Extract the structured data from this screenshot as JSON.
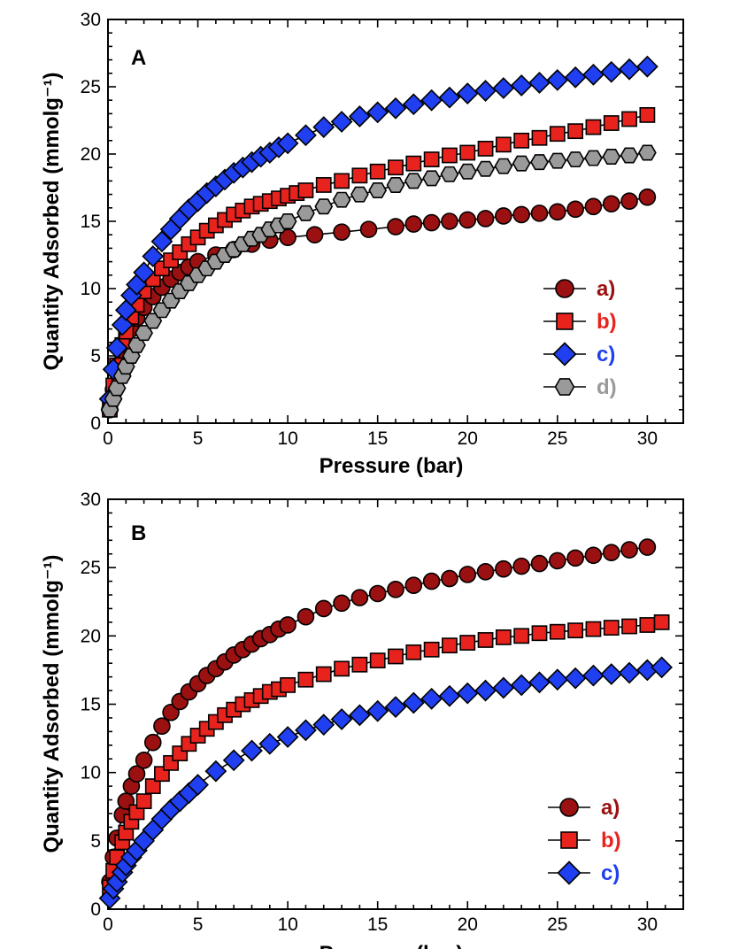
{
  "chart_data": [
    {
      "type": "scatter",
      "panel_label": "A",
      "xlabel": "Pressure (bar)",
      "ylabel": "Quantity Adsorbed (mmolg⁻¹)",
      "xlim": [
        0,
        32
      ],
      "ylim": [
        0,
        30
      ],
      "x_ticks": [
        0,
        5,
        10,
        15,
        20,
        25,
        30
      ],
      "y_ticks": [
        0,
        5,
        10,
        15,
        20,
        25,
        30
      ],
      "grid": false,
      "legend_position": "bottom-right",
      "series": [
        {
          "name": "a)",
          "marker": "circle",
          "color": "#9b1111",
          "x": [
            0.1,
            0.3,
            0.5,
            0.8,
            1.0,
            1.3,
            1.6,
            2.0,
            2.5,
            3.0,
            3.5,
            4.0,
            4.5,
            5.0,
            6.0,
            7.0,
            8.0,
            9.0,
            10.0,
            11.5,
            13.0,
            14.5,
            16.0,
            17.0,
            18.0,
            19.0,
            20.0,
            21.0,
            22.0,
            23.0,
            24.0,
            25.0,
            26.0,
            27.0,
            28.0,
            29.0,
            30.0
          ],
          "y": [
            1.0,
            2.5,
            3.8,
            5.2,
            6.0,
            7.0,
            7.8,
            8.6,
            9.4,
            10.1,
            10.7,
            11.2,
            11.6,
            12.0,
            12.5,
            12.9,
            13.3,
            13.6,
            13.8,
            14.0,
            14.2,
            14.4,
            14.6,
            14.8,
            14.9,
            15.0,
            15.1,
            15.2,
            15.4,
            15.5,
            15.6,
            15.7,
            15.9,
            16.1,
            16.3,
            16.5,
            16.8
          ]
        },
        {
          "name": "b)",
          "marker": "square",
          "color": "#e8231e",
          "x": [
            0.1,
            0.3,
            0.5,
            0.8,
            1.0,
            1.3,
            1.6,
            2.0,
            2.5,
            3.0,
            3.5,
            4.0,
            4.5,
            5.0,
            5.5,
            6.0,
            6.5,
            7.0,
            7.5,
            8.0,
            8.5,
            9.0,
            9.5,
            10.0,
            10.5,
            11.0,
            12.0,
            13.0,
            14.0,
            15.0,
            16.0,
            17.0,
            18.0,
            19.0,
            20.0,
            21.0,
            22.0,
            23.0,
            24.0,
            25.0,
            26.0,
            27.0,
            28.0,
            29.0,
            30.0
          ],
          "y": [
            1.0,
            2.8,
            4.3,
            5.8,
            6.8,
            7.9,
            8.8,
            9.8,
            10.7,
            11.5,
            12.1,
            12.7,
            13.3,
            13.8,
            14.3,
            14.7,
            15.1,
            15.5,
            15.8,
            16.1,
            16.3,
            16.5,
            16.7,
            16.9,
            17.1,
            17.3,
            17.7,
            18.0,
            18.4,
            18.7,
            19.0,
            19.3,
            19.6,
            19.9,
            20.1,
            20.4,
            20.7,
            21.0,
            21.2,
            21.5,
            21.7,
            22.0,
            22.3,
            22.6,
            22.9
          ]
        },
        {
          "name": "c)",
          "marker": "diamond",
          "color": "#1f3ff0",
          "x": [
            0.1,
            0.3,
            0.5,
            0.8,
            1.0,
            1.3,
            1.6,
            2.0,
            2.5,
            3.0,
            3.5,
            4.0,
            4.5,
            5.0,
            5.5,
            6.0,
            6.5,
            7.0,
            7.5,
            8.0,
            8.5,
            9.0,
            9.5,
            10.0,
            11.0,
            12.0,
            13.0,
            14.0,
            15.0,
            16.0,
            17.0,
            18.0,
            19.0,
            20.0,
            21.0,
            22.0,
            23.0,
            24.0,
            25.0,
            26.0,
            27.0,
            28.0,
            29.0,
            30.0
          ],
          "y": [
            1.8,
            4.0,
            5.6,
            7.3,
            8.4,
            9.5,
            10.3,
            11.2,
            12.4,
            13.5,
            14.4,
            15.2,
            15.9,
            16.5,
            17.1,
            17.6,
            18.1,
            18.6,
            19.0,
            19.4,
            19.8,
            20.1,
            20.5,
            20.8,
            21.4,
            22.0,
            22.4,
            22.8,
            23.1,
            23.4,
            23.7,
            24.0,
            24.2,
            24.5,
            24.7,
            24.9,
            25.1,
            25.3,
            25.5,
            25.7,
            25.9,
            26.1,
            26.3,
            26.5
          ]
        },
        {
          "name": "d)",
          "marker": "hexagon",
          "color": "#9a9a9a",
          "x": [
            0.1,
            0.3,
            0.5,
            0.8,
            1.0,
            1.3,
            1.6,
            2.0,
            2.5,
            3.0,
            3.5,
            4.0,
            4.5,
            5.0,
            5.5,
            6.0,
            6.5,
            7.0,
            7.5,
            8.0,
            8.5,
            9.0,
            9.5,
            10.0,
            11.0,
            12.0,
            13.0,
            14.0,
            15.0,
            16.0,
            17.0,
            18.0,
            19.0,
            20.0,
            21.0,
            22.0,
            23.0,
            24.0,
            25.0,
            26.0,
            27.0,
            28.0,
            29.0,
            30.0
          ],
          "y": [
            1.0,
            1.8,
            2.6,
            3.5,
            4.2,
            5.0,
            5.8,
            6.7,
            7.6,
            8.4,
            9.1,
            9.8,
            10.4,
            11.0,
            11.5,
            12.0,
            12.5,
            12.9,
            13.3,
            13.7,
            14.0,
            14.4,
            14.7,
            15.0,
            15.6,
            16.1,
            16.6,
            17.0,
            17.3,
            17.7,
            18.0,
            18.2,
            18.5,
            18.7,
            18.9,
            19.1,
            19.3,
            19.4,
            19.5,
            19.6,
            19.7,
            19.8,
            19.9,
            20.1
          ]
        }
      ]
    },
    {
      "type": "scatter",
      "panel_label": "B",
      "xlabel": "Pressure (bar)",
      "ylabel": "Quantity Adsorbed (mmolg⁻¹)",
      "xlim": [
        0,
        32
      ],
      "ylim": [
        0,
        30
      ],
      "x_ticks": [
        0,
        5,
        10,
        15,
        20,
        25,
        30
      ],
      "y_ticks": [
        0,
        5,
        10,
        15,
        20,
        25,
        30
      ],
      "grid": false,
      "legend_position": "bottom-right",
      "series": [
        {
          "name": "a)",
          "marker": "circle",
          "color": "#9b1111",
          "x": [
            0.1,
            0.3,
            0.5,
            0.8,
            1.0,
            1.3,
            1.6,
            2.0,
            2.5,
            3.0,
            3.5,
            4.0,
            4.5,
            5.0,
            5.5,
            6.0,
            6.5,
            7.0,
            7.5,
            8.0,
            8.5,
            9.0,
            9.5,
            10.0,
            11.0,
            12.0,
            13.0,
            14.0,
            15.0,
            16.0,
            17.0,
            18.0,
            19.0,
            20.0,
            21.0,
            22.0,
            23.0,
            24.0,
            25.0,
            26.0,
            27.0,
            28.0,
            29.0,
            30.0
          ],
          "y": [
            2.0,
            3.8,
            5.2,
            6.9,
            7.9,
            9.0,
            9.9,
            10.9,
            12.2,
            13.4,
            14.4,
            15.2,
            15.9,
            16.5,
            17.1,
            17.6,
            18.1,
            18.6,
            19.0,
            19.4,
            19.8,
            20.1,
            20.5,
            20.8,
            21.4,
            22.0,
            22.4,
            22.8,
            23.1,
            23.4,
            23.7,
            24.0,
            24.2,
            24.5,
            24.7,
            24.9,
            25.1,
            25.3,
            25.5,
            25.7,
            25.9,
            26.1,
            26.3,
            26.5
          ]
        },
        {
          "name": "b)",
          "marker": "square",
          "color": "#e8231e",
          "x": [
            0.1,
            0.3,
            0.5,
            0.8,
            1.0,
            1.3,
            1.6,
            2.0,
            2.5,
            3.0,
            3.5,
            4.0,
            4.5,
            5.0,
            5.5,
            6.0,
            6.5,
            7.0,
            7.5,
            8.0,
            8.5,
            9.0,
            9.5,
            10.0,
            11.0,
            12.0,
            13.0,
            14.0,
            15.0,
            16.0,
            17.0,
            18.0,
            19.0,
            20.0,
            21.0,
            22.0,
            23.0,
            24.0,
            25.0,
            26.0,
            27.0,
            28.0,
            29.0,
            30.0,
            30.8
          ],
          "y": [
            1.6,
            2.8,
            3.8,
            4.9,
            5.6,
            6.4,
            7.1,
            7.9,
            9.0,
            9.9,
            10.7,
            11.4,
            12.1,
            12.7,
            13.2,
            13.7,
            14.2,
            14.6,
            15.0,
            15.3,
            15.6,
            15.9,
            16.1,
            16.4,
            16.8,
            17.2,
            17.6,
            17.9,
            18.2,
            18.5,
            18.8,
            19.0,
            19.3,
            19.5,
            19.7,
            19.9,
            20.0,
            20.2,
            20.3,
            20.4,
            20.5,
            20.6,
            20.7,
            20.8,
            21.0
          ]
        },
        {
          "name": "c)",
          "marker": "diamond",
          "color": "#1f3ff0",
          "x": [
            0.1,
            0.3,
            0.5,
            0.8,
            1.0,
            1.3,
            1.6,
            2.0,
            2.5,
            3.0,
            3.5,
            4.0,
            4.5,
            5.0,
            6.0,
            7.0,
            8.0,
            9.0,
            10.0,
            11.0,
            12.0,
            13.0,
            14.0,
            15.0,
            16.0,
            17.0,
            18.0,
            19.0,
            20.0,
            21.0,
            22.0,
            23.0,
            24.0,
            25.0,
            26.0,
            27.0,
            28.0,
            29.0,
            30.0,
            30.8
          ],
          "y": [
            0.8,
            1.5,
            2.0,
            2.7,
            3.2,
            3.8,
            4.3,
            5.0,
            5.8,
            6.6,
            7.3,
            7.9,
            8.5,
            9.1,
            10.1,
            10.9,
            11.6,
            12.1,
            12.6,
            13.1,
            13.5,
            13.9,
            14.2,
            14.5,
            14.8,
            15.1,
            15.4,
            15.6,
            15.8,
            16.0,
            16.2,
            16.4,
            16.6,
            16.8,
            16.9,
            17.1,
            17.2,
            17.3,
            17.5,
            17.7
          ]
        }
      ]
    }
  ]
}
